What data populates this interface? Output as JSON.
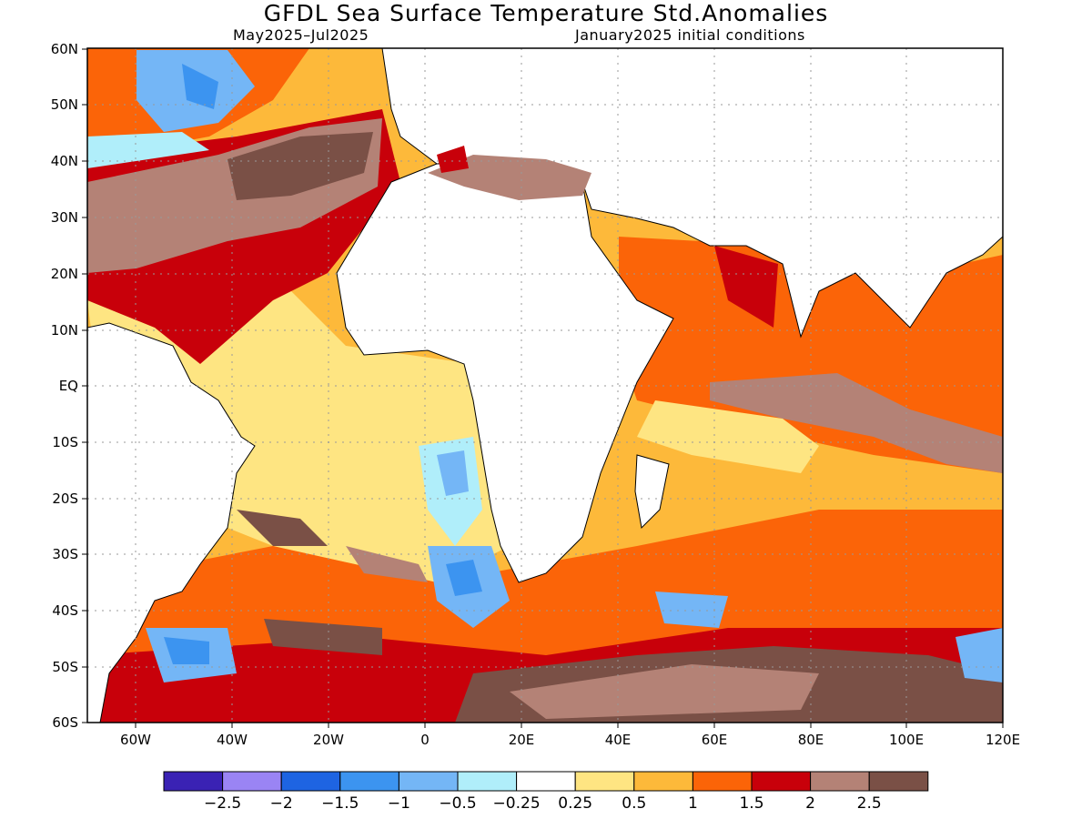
{
  "title": "GFDL Sea Surface Temperature Std.Anomalies",
  "subtitle_left": "May2025–Jul2025",
  "subtitle_right": "January2025 initial conditions",
  "lat_labels": [
    "60N",
    "50N",
    "40N",
    "30N",
    "20N",
    "10N",
    "EQ",
    "10S",
    "20S",
    "30S",
    "40S",
    "50S",
    "60S"
  ],
  "lon_labels": [
    "60W",
    "40W",
    "20W",
    "0",
    "20E",
    "40E",
    "60E",
    "80E",
    "100E",
    "120E"
  ],
  "colorbar": {
    "colors": [
      "#3a22b4",
      "#9a84f4",
      "#1e64e2",
      "#3c94f0",
      "#74b6f6",
      "#b0eefa",
      "#ffffff",
      "#fee582",
      "#fdb93a",
      "#fb6408",
      "#c8000a",
      "#b48276",
      "#7a5046"
    ],
    "labels": [
      "−2.5",
      "−2",
      "−1.5",
      "−1",
      "−0.5",
      "−0.25",
      "0.25",
      "0.5",
      "1",
      "1.5",
      "2",
      "2.5"
    ]
  }
}
